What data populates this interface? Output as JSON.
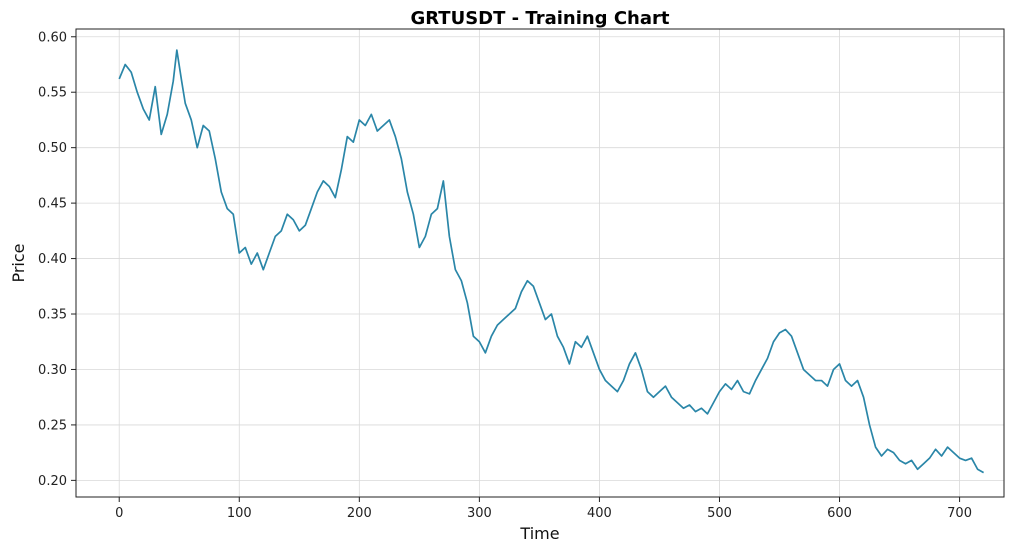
{
  "chart_data": {
    "type": "line",
    "title": "GRTUSDT - Training Chart",
    "xlabel": "Time",
    "ylabel": "Price",
    "xlim": [
      -36,
      737
    ],
    "ylim": [
      0.185,
      0.607
    ],
    "xticks": [
      0,
      100,
      200,
      300,
      400,
      500,
      600,
      700
    ],
    "yticks": [
      0.2,
      0.25,
      0.3,
      0.35,
      0.4,
      0.45,
      0.5,
      0.55,
      0.6
    ],
    "grid": true,
    "line_color": "#2a86a8",
    "series": [
      {
        "x": [
          0,
          5,
          10,
          15,
          20,
          25,
          30,
          35,
          40,
          45,
          48,
          52,
          55,
          60,
          65,
          70,
          75,
          80,
          85,
          90,
          95,
          100,
          105,
          110,
          115,
          120,
          125,
          130,
          135,
          140,
          145,
          150,
          155,
          160,
          165,
          170,
          175,
          180,
          185,
          190,
          195,
          200,
          205,
          210,
          215,
          220,
          225,
          230,
          235,
          240,
          245,
          250,
          255,
          260,
          265,
          270,
          275,
          280,
          285,
          290,
          295,
          300,
          305,
          310,
          315,
          320,
          325,
          330,
          335,
          340,
          345,
          350,
          355,
          360,
          365,
          370,
          375,
          380,
          385,
          390,
          395,
          400,
          405,
          410,
          415,
          420,
          425,
          430,
          435,
          440,
          445,
          450,
          455,
          460,
          465,
          470,
          475,
          480,
          485,
          490,
          495,
          500,
          505,
          510,
          515,
          520,
          525,
          530,
          535,
          540,
          545,
          550,
          555,
          560,
          565,
          570,
          575,
          580,
          585,
          590,
          595,
          600,
          605,
          610,
          615,
          620,
          625,
          630,
          635,
          640,
          645,
          650,
          655,
          660,
          665,
          670,
          675,
          680,
          685,
          690,
          695,
          700,
          705,
          710,
          715,
          720
        ],
        "y": [
          0.562,
          0.575,
          0.568,
          0.55,
          0.535,
          0.525,
          0.555,
          0.512,
          0.53,
          0.56,
          0.588,
          0.56,
          0.54,
          0.525,
          0.5,
          0.52,
          0.515,
          0.49,
          0.46,
          0.445,
          0.44,
          0.405,
          0.41,
          0.395,
          0.405,
          0.39,
          0.405,
          0.42,
          0.425,
          0.44,
          0.435,
          0.425,
          0.43,
          0.445,
          0.46,
          0.47,
          0.465,
          0.455,
          0.48,
          0.51,
          0.505,
          0.525,
          0.52,
          0.53,
          0.515,
          0.52,
          0.525,
          0.51,
          0.49,
          0.46,
          0.44,
          0.41,
          0.42,
          0.44,
          0.445,
          0.47,
          0.42,
          0.39,
          0.38,
          0.36,
          0.33,
          0.325,
          0.315,
          0.33,
          0.34,
          0.345,
          0.35,
          0.355,
          0.37,
          0.38,
          0.375,
          0.36,
          0.345,
          0.35,
          0.33,
          0.32,
          0.305,
          0.325,
          0.32,
          0.33,
          0.315,
          0.3,
          0.29,
          0.285,
          0.28,
          0.29,
          0.305,
          0.315,
          0.3,
          0.28,
          0.275,
          0.28,
          0.285,
          0.275,
          0.27,
          0.265,
          0.268,
          0.262,
          0.265,
          0.26,
          0.27,
          0.28,
          0.287,
          0.282,
          0.29,
          0.28,
          0.278,
          0.29,
          0.3,
          0.31,
          0.325,
          0.333,
          0.336,
          0.33,
          0.315,
          0.3,
          0.295,
          0.29,
          0.29,
          0.285,
          0.3,
          0.305,
          0.29,
          0.285,
          0.29,
          0.275,
          0.25,
          0.23,
          0.222,
          0.228,
          0.225,
          0.218,
          0.215,
          0.218,
          0.21,
          0.215,
          0.22,
          0.228,
          0.222,
          0.23,
          0.225,
          0.22,
          0.218,
          0.22,
          0.21,
          0.207
        ]
      }
    ]
  }
}
